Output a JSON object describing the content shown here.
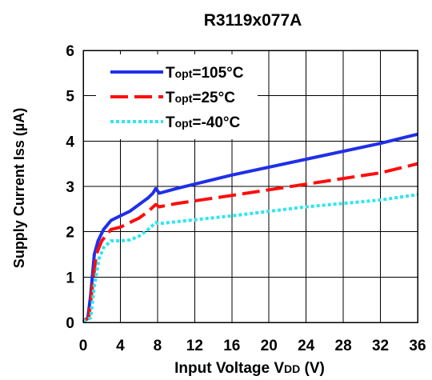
{
  "chart_data": {
    "type": "line",
    "title": "R3119x077A",
    "xlabel": "Input Voltage VDD (V)",
    "ylabel": "Supply Current Iss (µA)",
    "xlim": [
      0,
      36
    ],
    "ylim": [
      0,
      6
    ],
    "xticks": [
      0,
      4,
      8,
      12,
      16,
      20,
      24,
      28,
      32,
      36
    ],
    "yticks": [
      0,
      1,
      2,
      3,
      4,
      5,
      6
    ],
    "grid": true,
    "legend_position": "top-left",
    "series": [
      {
        "name": "Topt=105°C",
        "name_main": "T",
        "name_sub": "opt",
        "name_rest": "=105°C",
        "color": "#1f2fe8",
        "dash": "solid",
        "x": [
          0,
          0.5,
          0.8,
          1.2,
          1.6,
          2.2,
          3.0,
          4.0,
          5.0,
          6.0,
          7.0,
          7.5,
          7.8,
          8.2,
          10,
          16,
          24,
          32,
          36
        ],
        "y": [
          0.02,
          0.1,
          0.6,
          1.5,
          1.8,
          2.05,
          2.25,
          2.35,
          2.45,
          2.6,
          2.75,
          2.85,
          2.95,
          2.85,
          2.95,
          3.25,
          3.6,
          3.95,
          4.15
        ]
      },
      {
        "name": "Topt=25°C",
        "name_main": "T",
        "name_sub": "opt",
        "name_rest": "=25°C",
        "color": "#ff0d0d",
        "dash": "dashed",
        "x": [
          0,
          0.6,
          1.0,
          1.4,
          2.0,
          3.0,
          4.0,
          5.0,
          6.0,
          7.0,
          7.8,
          8.2,
          10,
          16,
          24,
          32,
          36
        ],
        "y": [
          0.02,
          0.1,
          0.8,
          1.5,
          1.8,
          2.05,
          2.1,
          2.2,
          2.3,
          2.45,
          2.6,
          2.55,
          2.62,
          2.8,
          3.05,
          3.3,
          3.5
        ]
      },
      {
        "name": "Topt=-40°C",
        "name_main": "T",
        "name_sub": "opt",
        "name_rest": "=-40°C",
        "color": "#2fe6ee",
        "dash": "dotted",
        "x": [
          0,
          0.8,
          1.2,
          1.7,
          2.2,
          3.0,
          4.0,
          5.0,
          6.0,
          7.0,
          7.8,
          8.2,
          10,
          16,
          24,
          32,
          36
        ],
        "y": [
          0.02,
          0.1,
          0.8,
          1.4,
          1.65,
          1.8,
          1.8,
          1.82,
          1.9,
          2.05,
          2.2,
          2.18,
          2.22,
          2.35,
          2.55,
          2.7,
          2.82
        ]
      }
    ]
  }
}
